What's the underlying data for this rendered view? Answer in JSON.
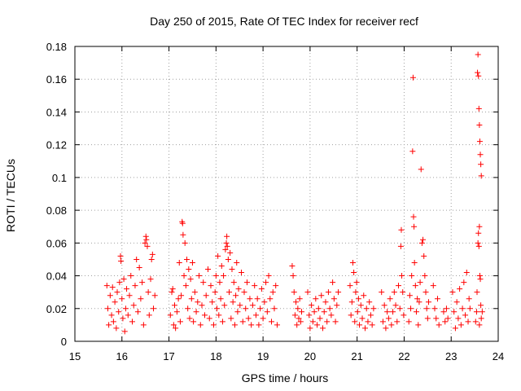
{
  "chart_data": {
    "type": "scatter",
    "title": "Day 250 of 2015, Rate Of TEC Index for receiver recf",
    "xlabel": "GPS time / hours",
    "ylabel": "ROTI / TECUs",
    "xlim": [
      15,
      24
    ],
    "ylim": [
      0,
      0.18
    ],
    "xticks": [
      "15",
      "16",
      "17",
      "18",
      "19",
      "20",
      "21",
      "22",
      "23",
      "24"
    ],
    "yticks": [
      "0",
      "0.02",
      "0.04",
      "0.06",
      "0.08",
      "0.1",
      "0.12",
      "0.14",
      "0.16",
      "0.18"
    ],
    "grid": true,
    "marker": "plus",
    "series": [
      {
        "name": "ROTI",
        "color": "#ff0000",
        "points": [
          [
            15.68,
            0.034
          ],
          [
            15.7,
            0.02
          ],
          [
            15.72,
            0.01
          ],
          [
            15.75,
            0.028
          ],
          [
            15.78,
            0.016
          ],
          [
            15.8,
            0.033
          ],
          [
            15.82,
            0.012
          ],
          [
            15.85,
            0.024
          ],
          [
            15.88,
            0.008
          ],
          [
            15.9,
            0.03
          ],
          [
            15.93,
            0.018
          ],
          [
            15.95,
            0.036
          ],
          [
            15.97,
            0.052
          ],
          [
            15.98,
            0.049
          ],
          [
            16.0,
            0.026
          ],
          [
            16.02,
            0.014
          ],
          [
            16.04,
            0.038
          ],
          [
            16.06,
            0.006
          ],
          [
            16.08,
            0.02
          ],
          [
            16.1,
            0.032
          ],
          [
            16.13,
            0.016
          ],
          [
            16.16,
            0.028
          ],
          [
            16.19,
            0.04
          ],
          [
            16.22,
            0.012
          ],
          [
            16.25,
            0.022
          ],
          [
            16.28,
            0.034
          ],
          [
            16.31,
            0.05
          ],
          [
            16.34,
            0.018
          ],
          [
            16.37,
            0.045
          ],
          [
            16.4,
            0.026
          ],
          [
            16.43,
            0.036
          ],
          [
            16.46,
            0.01
          ],
          [
            16.49,
            0.06
          ],
          [
            16.51,
            0.064
          ],
          [
            16.52,
            0.062
          ],
          [
            16.54,
            0.058
          ],
          [
            16.56,
            0.03
          ],
          [
            16.58,
            0.016
          ],
          [
            16.61,
            0.038
          ],
          [
            16.63,
            0.05
          ],
          [
            16.65,
            0.053
          ],
          [
            16.67,
            0.02
          ],
          [
            16.7,
            0.028
          ],
          [
            17.03,
            0.016
          ],
          [
            17.06,
            0.03
          ],
          [
            17.08,
            0.032
          ],
          [
            17.1,
            0.01
          ],
          [
            17.12,
            0.022
          ],
          [
            17.14,
            0.008
          ],
          [
            17.17,
            0.018
          ],
          [
            17.2,
            0.026
          ],
          [
            17.22,
            0.048
          ],
          [
            17.24,
            0.012
          ],
          [
            17.26,
            0.028
          ],
          [
            17.28,
            0.073
          ],
          [
            17.29,
            0.072
          ],
          [
            17.3,
            0.065
          ],
          [
            17.32,
            0.04
          ],
          [
            17.34,
            0.06
          ],
          [
            17.36,
            0.034
          ],
          [
            17.38,
            0.05
          ],
          [
            17.4,
            0.02
          ],
          [
            17.42,
            0.044
          ],
          [
            17.44,
            0.014
          ],
          [
            17.46,
            0.038
          ],
          [
            17.48,
            0.026
          ],
          [
            17.5,
            0.048
          ],
          [
            17.52,
            0.012
          ],
          [
            17.55,
            0.03
          ],
          [
            17.58,
            0.018
          ],
          [
            17.61,
            0.024
          ],
          [
            17.64,
            0.04
          ],
          [
            17.67,
            0.01
          ],
          [
            17.7,
            0.022
          ],
          [
            17.73,
            0.036
          ],
          [
            17.76,
            0.016
          ],
          [
            17.79,
            0.028
          ],
          [
            17.83,
            0.044
          ],
          [
            17.86,
            0.014
          ],
          [
            17.89,
            0.034
          ],
          [
            17.92,
            0.024
          ],
          [
            17.95,
            0.01
          ],
          [
            17.98,
            0.03
          ],
          [
            18.0,
            0.04
          ],
          [
            18.02,
            0.02
          ],
          [
            18.04,
            0.052
          ],
          [
            18.06,
            0.016
          ],
          [
            18.08,
            0.036
          ],
          [
            18.1,
            0.026
          ],
          [
            18.12,
            0.046
          ],
          [
            18.14,
            0.012
          ],
          [
            18.16,
            0.04
          ],
          [
            18.18,
            0.022
          ],
          [
            18.2,
            0.056
          ],
          [
            18.22,
            0.06
          ],
          [
            18.23,
            0.064
          ],
          [
            18.24,
            0.058
          ],
          [
            18.26,
            0.05
          ],
          [
            18.28,
            0.03
          ],
          [
            18.3,
            0.054
          ],
          [
            18.32,
            0.014
          ],
          [
            18.34,
            0.044
          ],
          [
            18.36,
            0.024
          ],
          [
            18.38,
            0.036
          ],
          [
            18.4,
            0.01
          ],
          [
            18.42,
            0.028
          ],
          [
            18.44,
            0.048
          ],
          [
            18.46,
            0.018
          ],
          [
            18.48,
            0.032
          ],
          [
            18.51,
            0.022
          ],
          [
            18.54,
            0.042
          ],
          [
            18.57,
            0.012
          ],
          [
            18.6,
            0.03
          ],
          [
            18.63,
            0.02
          ],
          [
            18.66,
            0.036
          ],
          [
            18.69,
            0.014
          ],
          [
            18.72,
            0.026
          ],
          [
            18.75,
            0.01
          ],
          [
            18.78,
            0.022
          ],
          [
            18.82,
            0.034
          ],
          [
            18.85,
            0.016
          ],
          [
            18.88,
            0.026
          ],
          [
            18.91,
            0.01
          ],
          [
            18.94,
            0.02
          ],
          [
            18.97,
            0.032
          ],
          [
            19.0,
            0.014
          ],
          [
            19.03,
            0.024
          ],
          [
            19.06,
            0.036
          ],
          [
            19.09,
            0.018
          ],
          [
            19.12,
            0.04
          ],
          [
            19.15,
            0.026
          ],
          [
            19.18,
            0.012
          ],
          [
            19.21,
            0.03
          ],
          [
            19.24,
            0.02
          ],
          [
            19.27,
            0.034
          ],
          [
            19.3,
            0.01
          ],
          [
            19.62,
            0.046
          ],
          [
            19.64,
            0.04
          ],
          [
            19.66,
            0.03
          ],
          [
            19.68,
            0.016
          ],
          [
            19.7,
            0.024
          ],
          [
            19.72,
            0.01
          ],
          [
            19.74,
            0.02
          ],
          [
            19.76,
            0.014
          ],
          [
            19.78,
            0.026
          ],
          [
            19.8,
            0.012
          ],
          [
            19.82,
            0.018
          ],
          [
            19.95,
            0.03
          ],
          [
            19.98,
            0.016
          ],
          [
            20.0,
            0.008
          ],
          [
            20.03,
            0.022
          ],
          [
            20.06,
            0.012
          ],
          [
            20.09,
            0.018
          ],
          [
            20.12,
            0.026
          ],
          [
            20.15,
            0.01
          ],
          [
            20.18,
            0.02
          ],
          [
            20.21,
            0.014
          ],
          [
            20.24,
            0.028
          ],
          [
            20.27,
            0.008
          ],
          [
            20.3,
            0.018
          ],
          [
            20.33,
            0.024
          ],
          [
            20.36,
            0.012
          ],
          [
            20.39,
            0.03
          ],
          [
            20.42,
            0.02
          ],
          [
            20.45,
            0.016
          ],
          [
            20.48,
            0.036
          ],
          [
            20.51,
            0.026
          ],
          [
            20.54,
            0.012
          ],
          [
            20.57,
            0.022
          ],
          [
            20.6,
            0.03
          ],
          [
            20.85,
            0.034
          ],
          [
            20.87,
            0.016
          ],
          [
            20.89,
            0.024
          ],
          [
            20.91,
            0.048
          ],
          [
            20.93,
            0.042
          ],
          [
            20.95,
            0.012
          ],
          [
            20.97,
            0.03
          ],
          [
            20.99,
            0.036
          ],
          [
            21.01,
            0.018
          ],
          [
            21.03,
            0.026
          ],
          [
            21.05,
            0.01
          ],
          [
            21.08,
            0.022
          ],
          [
            21.11,
            0.014
          ],
          [
            21.14,
            0.028
          ],
          [
            21.17,
            0.008
          ],
          [
            21.2,
            0.02
          ],
          [
            21.23,
            0.012
          ],
          [
            21.26,
            0.024
          ],
          [
            21.29,
            0.016
          ],
          [
            21.32,
            0.01
          ],
          [
            21.35,
            0.02
          ],
          [
            21.52,
            0.03
          ],
          [
            21.55,
            0.012
          ],
          [
            21.58,
            0.022
          ],
          [
            21.61,
            0.008
          ],
          [
            21.64,
            0.018
          ],
          [
            21.67,
            0.014
          ],
          [
            21.7,
            0.026
          ],
          [
            21.73,
            0.01
          ],
          [
            21.76,
            0.018
          ],
          [
            21.79,
            0.03
          ],
          [
            21.82,
            0.022
          ],
          [
            21.85,
            0.012
          ],
          [
            21.88,
            0.034
          ],
          [
            21.91,
            0.02
          ],
          [
            21.93,
            0.058
          ],
          [
            21.94,
            0.068
          ],
          [
            21.95,
            0.04
          ],
          [
            21.97,
            0.03
          ],
          [
            21.99,
            0.016
          ],
          [
            22.1,
            0.012
          ],
          [
            22.12,
            0.028
          ],
          [
            22.14,
            0.02
          ],
          [
            22.16,
            0.04
          ],
          [
            22.18,
            0.116
          ],
          [
            22.19,
            0.161
          ],
          [
            22.2,
            0.076
          ],
          [
            22.21,
            0.07
          ],
          [
            22.22,
            0.048
          ],
          [
            22.24,
            0.034
          ],
          [
            22.26,
            0.018
          ],
          [
            22.28,
            0.026
          ],
          [
            22.3,
            0.01
          ],
          [
            22.32,
            0.024
          ],
          [
            22.34,
            0.036
          ],
          [
            22.36,
            0.105
          ],
          [
            22.38,
            0.06
          ],
          [
            22.4,
            0.062
          ],
          [
            22.42,
            0.052
          ],
          [
            22.44,
            0.04
          ],
          [
            22.46,
            0.03
          ],
          [
            22.48,
            0.02
          ],
          [
            22.5,
            0.014
          ],
          [
            22.52,
            0.024
          ],
          [
            22.62,
            0.034
          ],
          [
            22.65,
            0.02
          ],
          [
            22.68,
            0.014
          ],
          [
            22.71,
            0.026
          ],
          [
            22.74,
            0.01
          ],
          [
            22.84,
            0.018
          ],
          [
            22.87,
            0.012
          ],
          [
            22.9,
            0.02
          ],
          [
            22.93,
            0.014
          ],
          [
            23.03,
            0.03
          ],
          [
            23.06,
            0.018
          ],
          [
            23.09,
            0.008
          ],
          [
            23.12,
            0.024
          ],
          [
            23.15,
            0.014
          ],
          [
            23.18,
            0.032
          ],
          [
            23.21,
            0.01
          ],
          [
            23.24,
            0.02
          ],
          [
            23.27,
            0.036
          ],
          [
            23.3,
            0.016
          ],
          [
            23.33,
            0.042
          ],
          [
            23.36,
            0.012
          ],
          [
            23.38,
            0.026
          ],
          [
            23.4,
            0.02
          ],
          [
            23.52,
            0.012
          ],
          [
            23.54,
            0.018
          ],
          [
            23.56,
            0.164
          ],
          [
            23.57,
            0.175
          ],
          [
            23.58,
            0.162
          ],
          [
            23.59,
            0.142
          ],
          [
            23.6,
            0.132
          ],
          [
            23.61,
            0.122
          ],
          [
            23.62,
            0.114
          ],
          [
            23.63,
            0.108
          ],
          [
            23.64,
            0.101
          ],
          [
            23.6,
            0.07
          ],
          [
            23.58,
            0.066
          ],
          [
            23.57,
            0.06
          ],
          [
            23.59,
            0.058
          ],
          [
            23.61,
            0.04
          ],
          [
            23.62,
            0.038
          ],
          [
            23.55,
            0.03
          ],
          [
            23.63,
            0.022
          ],
          [
            23.64,
            0.014
          ],
          [
            23.6,
            0.01
          ],
          [
            23.66,
            0.018
          ]
        ]
      }
    ]
  }
}
